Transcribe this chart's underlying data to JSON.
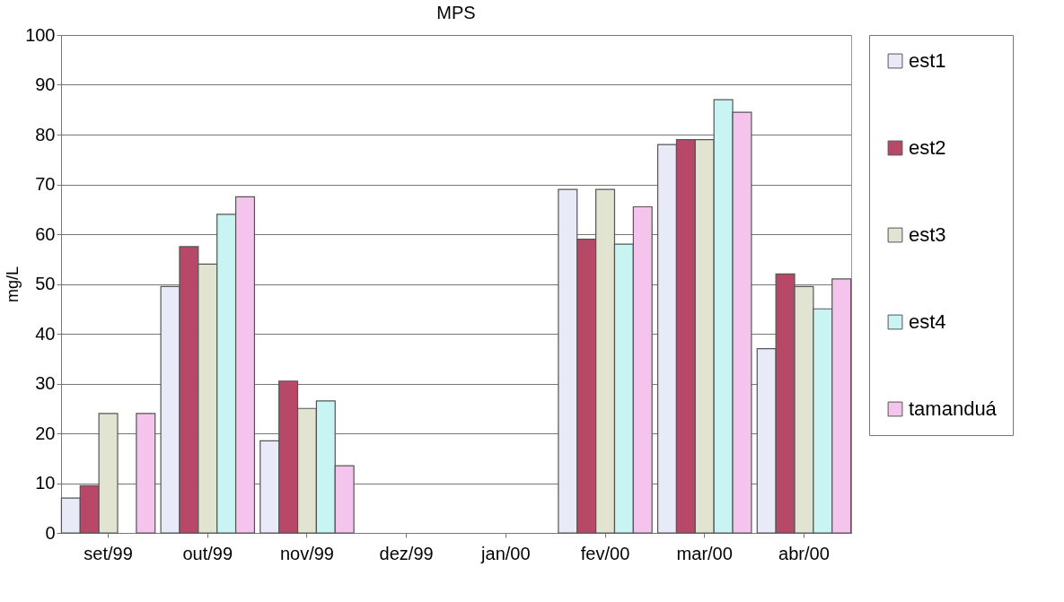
{
  "chart_data": {
    "type": "bar",
    "title": "MPS",
    "ylabel": "mg/L",
    "categories": [
      "set/99",
      "out/99",
      "nov/99",
      "dez/99",
      "jan/00",
      "fev/00",
      "mar/00",
      "abr/00"
    ],
    "series": [
      {
        "name": "est1",
        "color": "#e8eaf8",
        "values": [
          7,
          49.5,
          18.5,
          null,
          null,
          69,
          78,
          37
        ]
      },
      {
        "name": "est2",
        "color": "#b84868",
        "values": [
          9.5,
          57.5,
          30.5,
          null,
          null,
          59,
          79,
          52
        ]
      },
      {
        "name": "est3",
        "color": "#e0e4d0",
        "values": [
          24,
          54,
          25,
          null,
          null,
          69,
          79,
          49.5
        ]
      },
      {
        "name": "est4",
        "color": "#c8f4f4",
        "values": [
          null,
          64,
          26.5,
          null,
          null,
          58,
          87,
          45
        ]
      },
      {
        "name": "tamanduá",
        "color": "#f4c4ec",
        "values": [
          24,
          67.5,
          13.5,
          null,
          null,
          65.5,
          84.5,
          51
        ]
      }
    ],
    "ylim": [
      0,
      100
    ],
    "yticks": [
      0,
      10,
      20,
      30,
      40,
      50,
      60,
      70,
      80,
      90,
      100
    ],
    "grid": "y",
    "legend": "right"
  }
}
